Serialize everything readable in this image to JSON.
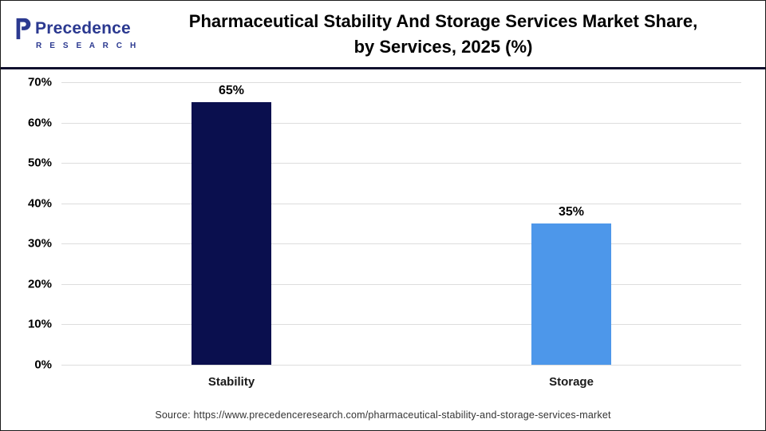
{
  "logo": {
    "name": "Precedence",
    "subtitle": "R E S E A R C H"
  },
  "header": {
    "title_line1": "Pharmaceutical Stability And Storage Services Market Share,",
    "title_line2": "by Services, 2025 (%)"
  },
  "footer": {
    "source": "Source: https://www.precedenceresearch.com/pharmaceutical-stability-and-storage-services-market"
  },
  "chart_data": {
    "type": "bar",
    "title": "Pharmaceutical Stability And Storage Services Market Share, by Services, 2025 (%)",
    "categories": [
      "Stability",
      "Storage"
    ],
    "values": [
      65,
      35
    ],
    "value_labels": [
      "65%",
      "35%"
    ],
    "xlabel": "",
    "ylabel": "",
    "ylim": [
      0,
      70
    ],
    "ytick_step": 10,
    "ytick_suffix": "%",
    "grid": true,
    "legend": false,
    "bar_colors": [
      "#0a0f4e",
      "#4d97ea"
    ]
  },
  "colors": {
    "bar_stability": "#0a0f4e",
    "bar_storage": "#4d97ea",
    "logo_blue": "#2b3990",
    "header_rule": "#10102e",
    "gridline": "#dddddd"
  }
}
